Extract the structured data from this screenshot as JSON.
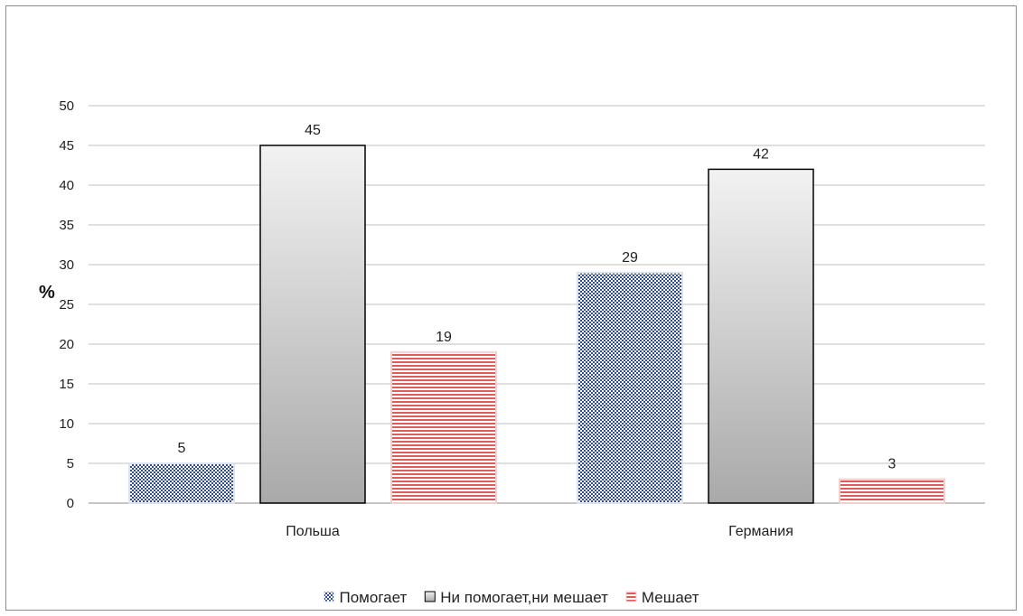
{
  "chart_data": {
    "type": "bar",
    "title": "",
    "xlabel": "",
    "ylabel": "%",
    "ylim": [
      0,
      50
    ],
    "ytick_step": 5,
    "grid": true,
    "legend_position": "bottom",
    "categories": [
      "Польша",
      "Германия"
    ],
    "series": [
      {
        "name": "Помогает",
        "values": [
          5,
          29
        ],
        "color": "#2f4f8f",
        "pattern": "checker"
      },
      {
        "name": "Ни помогает,ни мешает",
        "values": [
          45,
          42
        ],
        "color": "#c8c8c8",
        "pattern": "gradient"
      },
      {
        "name": "Мешает",
        "values": [
          19,
          3
        ],
        "color": "#e05a5a",
        "pattern": "horizontal-stripes"
      }
    ]
  }
}
